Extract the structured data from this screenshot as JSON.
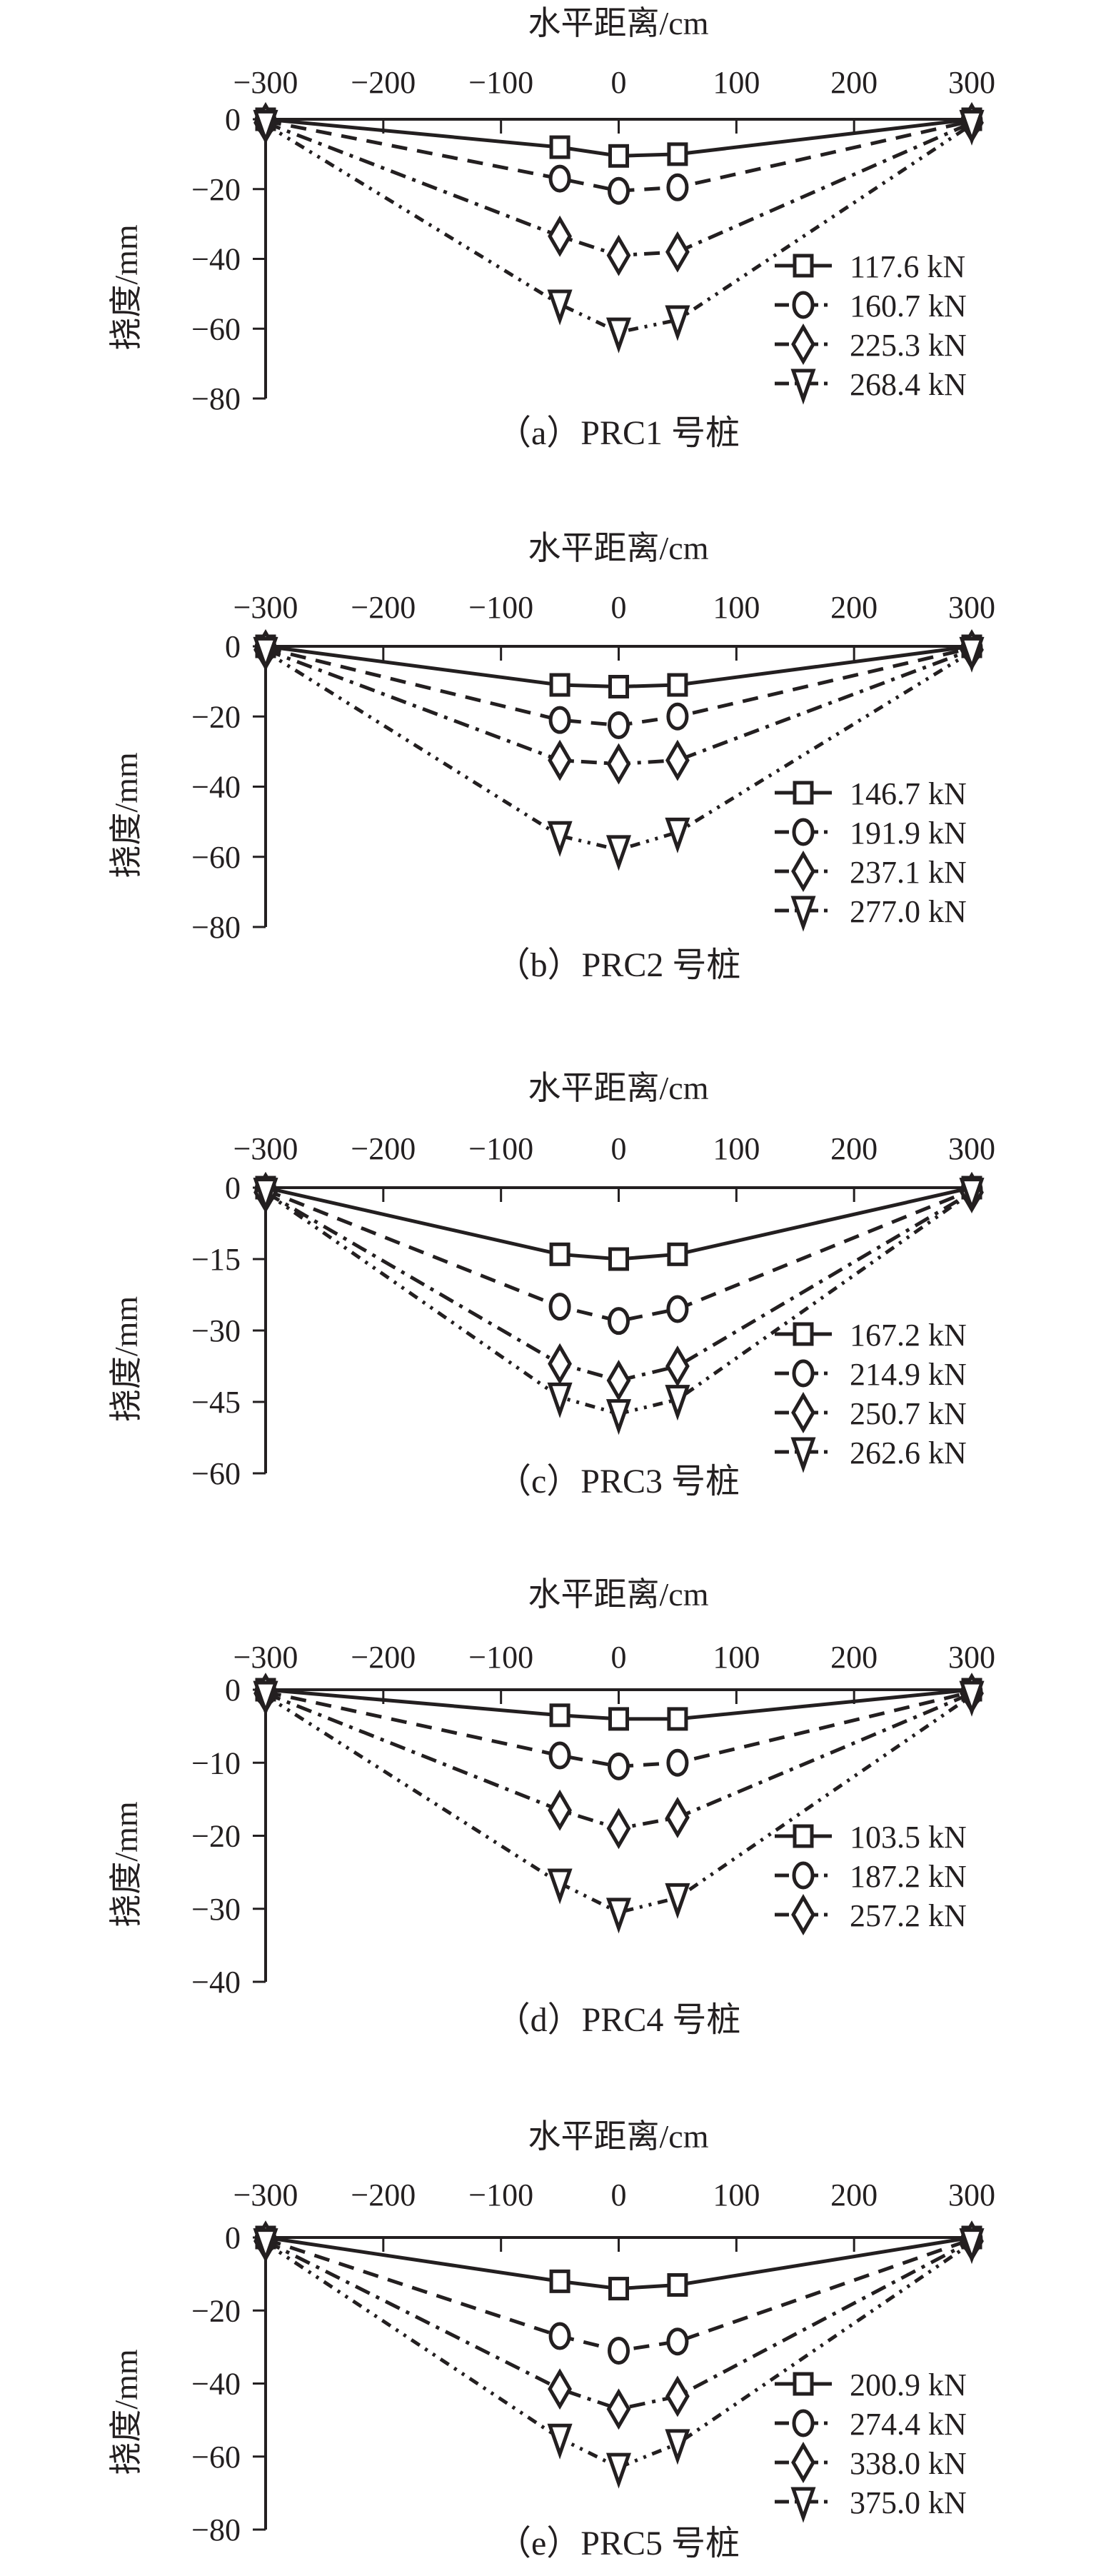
{
  "chart_data": [
    {
      "type": "line",
      "title": "水平距离/cm",
      "xlabel": "水平距离/cm",
      "ylabel": "挠度/mm",
      "caption": "（a）PRC1 号桩",
      "xlim": [
        -300,
        300
      ],
      "ylim": [
        -80,
        0
      ],
      "xticks": [
        "−300",
        "−200",
        "−100",
        "0",
        "100",
        "200",
        "300"
      ],
      "yticks": [
        "0",
        "−20",
        "−40",
        "−60",
        "−80"
      ],
      "x": [
        -300,
        -50,
        0,
        50,
        300
      ],
      "series": [
        {
          "name": "117.6 kN",
          "marker": "square",
          "style": "solid",
          "values": [
            0,
            -8,
            -10.5,
            -10,
            0
          ]
        },
        {
          "name": "160.7 kN",
          "marker": "circle",
          "style": "dash",
          "values": [
            -0.5,
            -17,
            -20.5,
            -19.5,
            -0.5
          ]
        },
        {
          "name": "225.3 kN",
          "marker": "diamond",
          "style": "dashdot",
          "values": [
            -1,
            -33.5,
            -39,
            -38,
            -1
          ]
        },
        {
          "name": "268.4 kN",
          "marker": "triangle-down",
          "style": "dashdotdot",
          "values": [
            -1.5,
            -53,
            -61,
            -57.5,
            -1.5
          ]
        }
      ],
      "legend_count": 4,
      "legend": "right"
    },
    {
      "type": "line",
      "title": "水平距离/cm",
      "xlabel": "水平距离/cm",
      "ylabel": "挠度/mm",
      "caption": "（b）PRC2 号桩",
      "xlim": [
        -300,
        300
      ],
      "ylim": [
        -80,
        0
      ],
      "xticks": [
        "−300",
        "−200",
        "−100",
        "0",
        "100",
        "200",
        "300"
      ],
      "yticks": [
        "0",
        "−20",
        "−40",
        "−60",
        "−80"
      ],
      "x": [
        -300,
        -50,
        0,
        50,
        300
      ],
      "series": [
        {
          "name": "146.7 kN",
          "marker": "square",
          "style": "solid",
          "values": [
            0,
            -11,
            -11.5,
            -11,
            0
          ]
        },
        {
          "name": "191.9 kN",
          "marker": "circle",
          "style": "dash",
          "values": [
            -0.5,
            -21,
            -22.5,
            -20,
            -0.5
          ]
        },
        {
          "name": "237.1 kN",
          "marker": "diamond",
          "style": "dashdot",
          "values": [
            -1,
            -32.5,
            -33.5,
            -32.5,
            -1
          ]
        },
        {
          "name": "277.0 kN",
          "marker": "triangle-down",
          "style": "dashdotdot",
          "values": [
            -1.5,
            -54,
            -58,
            -53,
            -1.5
          ]
        }
      ],
      "legend_count": 4,
      "legend": "right"
    },
    {
      "type": "line",
      "title": "水平距离/cm",
      "xlabel": "水平距离/cm",
      "ylabel": "挠度/mm",
      "caption": "（c）PRC3 号桩",
      "xlim": [
        -300,
        300
      ],
      "ylim": [
        -60,
        0
      ],
      "xticks": [
        "−300",
        "−200",
        "−100",
        "0",
        "100",
        "200",
        "300"
      ],
      "yticks": [
        "0",
        "−15",
        "−30",
        "−45",
        "−60"
      ],
      "x": [
        -300,
        -50,
        0,
        50,
        300
      ],
      "series": [
        {
          "name": "167.2 kN",
          "marker": "square",
          "style": "solid",
          "values": [
            0,
            -14,
            -15,
            -14,
            0
          ]
        },
        {
          "name": "214.9 kN",
          "marker": "circle",
          "style": "dash",
          "values": [
            -0.5,
            -25,
            -28,
            -25.5,
            -0.5
          ]
        },
        {
          "name": "250.7 kN",
          "marker": "diamond",
          "style": "dashdot",
          "values": [
            -1,
            -37,
            -40.5,
            -37.5,
            -1
          ]
        },
        {
          "name": "262.6 kN",
          "marker": "triangle-down",
          "style": "dashdotdot",
          "values": [
            -1,
            -44,
            -47.5,
            -44.5,
            -1
          ]
        }
      ],
      "legend_count": 4,
      "legend": "right"
    },
    {
      "type": "line",
      "title": "水平距离/cm",
      "xlabel": "水平距离/cm",
      "ylabel": "挠度/mm",
      "caption": "（d）PRC4 号桩",
      "xlim": [
        -300,
        300
      ],
      "ylim": [
        -40,
        0
      ],
      "xticks": [
        "−300",
        "−200",
        "−100",
        "0",
        "100",
        "200",
        "300"
      ],
      "yticks": [
        "0",
        "−10",
        "−20",
        "−30",
        "−40"
      ],
      "x": [
        -300,
        -50,
        0,
        50,
        300
      ],
      "series": [
        {
          "name": "103.5 kN",
          "marker": "square",
          "style": "solid",
          "values": [
            0,
            -3.5,
            -4,
            -4,
            0
          ]
        },
        {
          "name": "187.2 kN",
          "marker": "circle",
          "style": "dash",
          "values": [
            -0.3,
            -9,
            -10.5,
            -10,
            -0.3
          ]
        },
        {
          "name": "257.2 kN",
          "marker": "diamond",
          "style": "dashdot",
          "values": [
            -0.5,
            -16.5,
            -19,
            -17.5,
            -0.5
          ]
        },
        {
          "name": "",
          "marker": "triangle-down",
          "style": "dashdotdot",
          "values": [
            -0.8,
            -26.5,
            -30.5,
            -28.5,
            -0.8
          ]
        }
      ],
      "legend_count": 3,
      "legend": "right"
    },
    {
      "type": "line",
      "title": "水平距离/cm",
      "xlabel": "水平距离/cm",
      "ylabel": "挠度/mm",
      "caption": "（e）PRC5 号桩",
      "xlim": [
        -300,
        300
      ],
      "ylim": [
        -80,
        0
      ],
      "xticks": [
        "−300",
        "−200",
        "−100",
        "0",
        "100",
        "200",
        "300"
      ],
      "yticks": [
        "0",
        "−20",
        "−40",
        "−60",
        "−80"
      ],
      "x": [
        -300,
        -50,
        0,
        50,
        300
      ],
      "series": [
        {
          "name": "200.9 kN",
          "marker": "square",
          "style": "solid",
          "values": [
            0,
            -12,
            -14,
            -13,
            0
          ]
        },
        {
          "name": "274.4 kN",
          "marker": "circle",
          "style": "dash",
          "values": [
            -0.5,
            -27,
            -31,
            -28.5,
            -0.5
          ]
        },
        {
          "name": "338.0 kN",
          "marker": "diamond",
          "style": "dashdot",
          "values": [
            -1,
            -41.5,
            -47,
            -43.5,
            -1
          ]
        },
        {
          "name": "375.0 kN",
          "marker": "triangle-down",
          "style": "dashdotdot",
          "values": [
            -1.5,
            -55,
            -63,
            -56.5,
            -1.5
          ]
        }
      ],
      "legend_count": 4,
      "legend": "right"
    }
  ],
  "colors": {
    "ink": "#231f20",
    "background": "#ffffff"
  }
}
